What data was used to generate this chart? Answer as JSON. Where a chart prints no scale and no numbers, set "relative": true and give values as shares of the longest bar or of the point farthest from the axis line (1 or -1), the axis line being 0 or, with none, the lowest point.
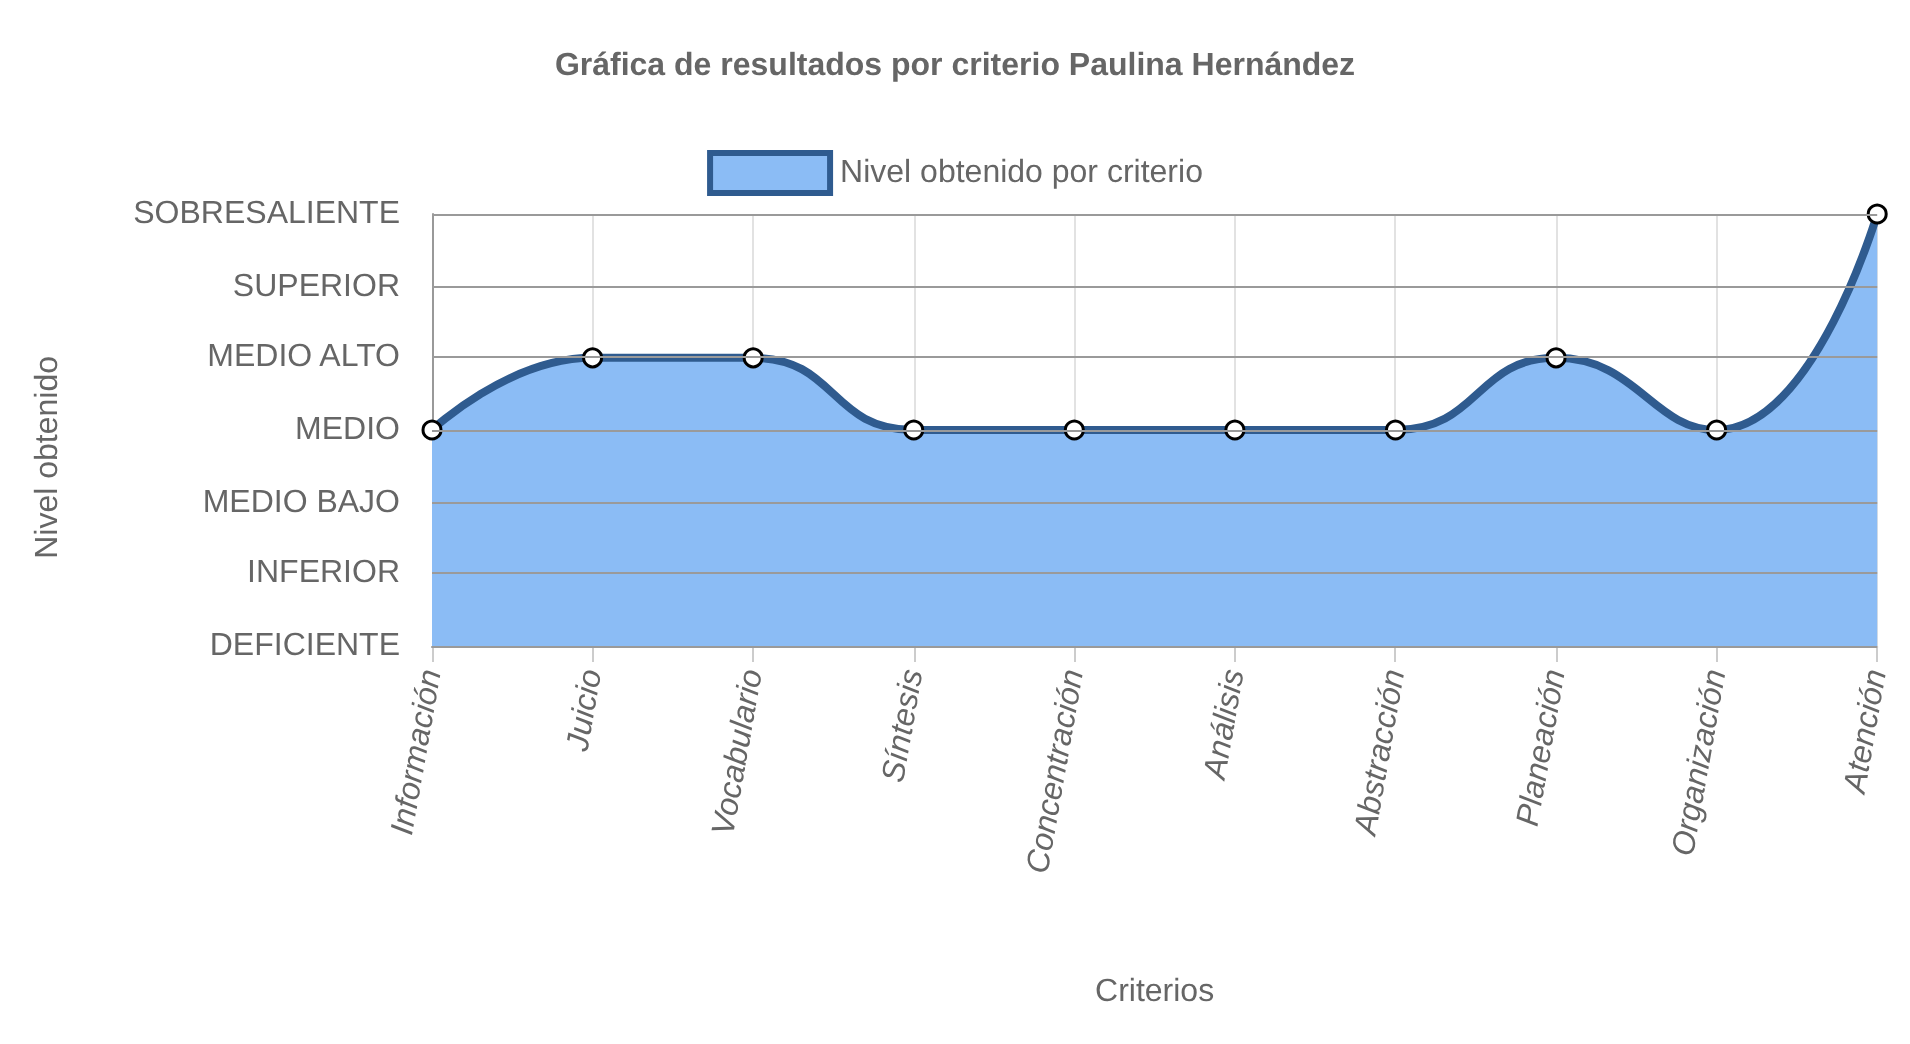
{
  "chart_data": {
    "type": "area",
    "title": "Gráfica de resultados por criterio Paulina Hernández",
    "xlabel": "Criterios",
    "annotations": [
      "Nivel obtenido"
    ],
    "categories": [
      "Información",
      "Juicio",
      "Vocabulario",
      "Síntesis",
      "Concentración",
      "Análisis",
      "Abstracción",
      "Planeación",
      "Organización",
      "Atención"
    ],
    "series": [
      {
        "name": "Nivel obtenido por criterio",
        "color": "#8bbcf5",
        "values": [
          0.5,
          0.667,
          0.667,
          0.5,
          0.5,
          0.5,
          0.5,
          0.667,
          0.5,
          1
        ]
      }
    ],
    "relative": true,
    "ref_lines": [
      {
        "axis": "y",
        "value": 0,
        "label": "DEFICIENTE"
      },
      {
        "axis": "y",
        "value": 0.167,
        "label": "INFERIOR"
      },
      {
        "axis": "y",
        "value": 0.333,
        "label": "MEDIO BAJO"
      },
      {
        "axis": "y",
        "value": 0.5,
        "label": "MEDIO"
      },
      {
        "axis": "y",
        "value": 0.667,
        "label": "MEDIO ALTO"
      },
      {
        "axis": "y",
        "value": 0.833,
        "label": "SUPERIOR"
      },
      {
        "axis": "y",
        "value": 1,
        "label": "SOBRESALIENTE"
      }
    ],
    "grid": "x",
    "legend": "top",
    "marker": "circle",
    "line_style": "solid"
  }
}
